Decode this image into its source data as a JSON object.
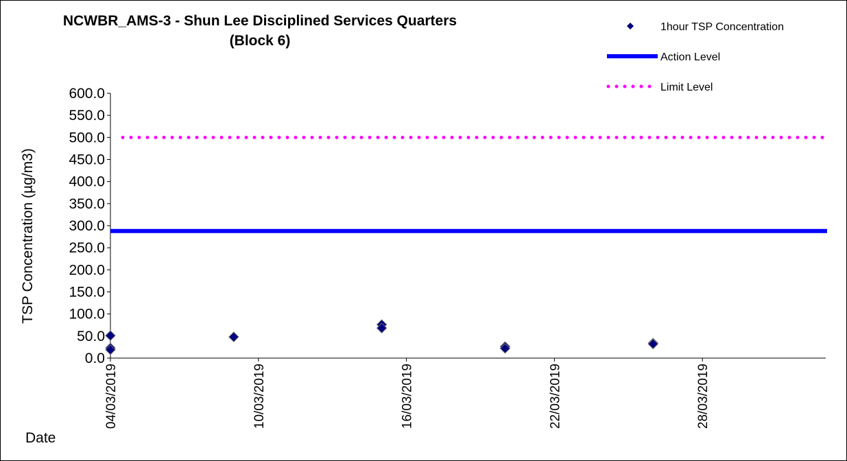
{
  "chart_data": {
    "type": "scatter",
    "title_line1": "NCWBR_AMS-3 - Shun Lee Disciplined Services Quarters",
    "title_line2": "(Block 6)",
    "xlabel": "Date",
    "ylabel": "TSP Concentration  (µg/m3)",
    "ylim": [
      0,
      600
    ],
    "y_ticks": [
      "0.0",
      "50.0",
      "100.0",
      "150.0",
      "200.0",
      "250.0",
      "300.0",
      "350.0",
      "400.0",
      "450.0",
      "500.0",
      "550.0",
      "600.0"
    ],
    "xlim": [
      "04/03/2019",
      "02/04/2019"
    ],
    "x_ticks": [
      "04/03/2019",
      "10/03/2019",
      "16/03/2019",
      "22/03/2019",
      "28/03/2019"
    ],
    "grid": false,
    "legend_position": "top-right",
    "series": [
      {
        "name": "1hour TSP Concentration",
        "kind": "scatter",
        "marker": "diamond",
        "color": "#000080",
        "points": [
          {
            "x": "04/03/2019",
            "y": 51.0
          },
          {
            "x": "04/03/2019",
            "y": 23.0
          },
          {
            "x": "04/03/2019",
            "y": 19.0
          },
          {
            "x": "09/03/2019",
            "y": 48.0
          },
          {
            "x": "15/03/2019",
            "y": 76.0
          },
          {
            "x": "15/03/2019",
            "y": 68.0
          },
          {
            "x": "20/03/2019",
            "y": 26.0
          },
          {
            "x": "20/03/2019",
            "y": 22.0
          },
          {
            "x": "26/03/2019",
            "y": 34.0
          },
          {
            "x": "26/03/2019",
            "y": 32.0
          }
        ]
      },
      {
        "name": "Action Level",
        "kind": "hline",
        "color": "#0000FF",
        "value": 288.0
      },
      {
        "name": "Limit Level",
        "kind": "hline",
        "color": "#FF00FF",
        "value": 500.0
      }
    ]
  }
}
